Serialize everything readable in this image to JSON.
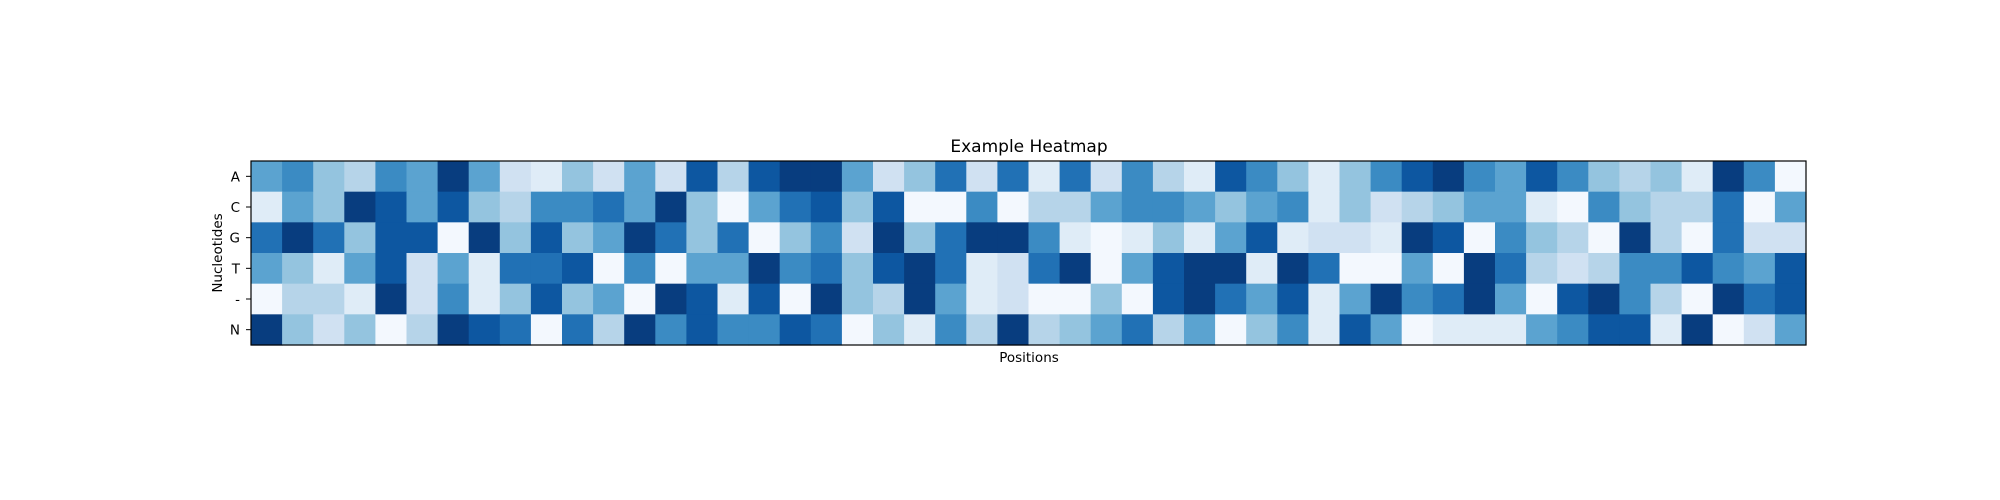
{
  "chart_data": {
    "type": "heatmap",
    "title": "Example Heatmap",
    "xlabel": "Positions",
    "ylabel": "Nucleotides",
    "rows": [
      "A",
      "C",
      "G",
      "T",
      "-",
      "N"
    ],
    "colormap": "Blues",
    "color_low": "#f7fbff",
    "color_high": "#08306b",
    "value_range": [
      0,
      1
    ],
    "x_ticks_visible": false,
    "values": [
      [
        0.55,
        0.65,
        0.4,
        0.3,
        0.65,
        0.55,
        0.95,
        0.55,
        0.2,
        0.12,
        0.4,
        0.2,
        0.55,
        0.2,
        0.85,
        0.3,
        0.85,
        0.95,
        0.95,
        0.55,
        0.2,
        0.4,
        0.75,
        0.2,
        0.75,
        0.12,
        0.75,
        0.2,
        0.65,
        0.3,
        0.12,
        0.85,
        0.65,
        0.4,
        0.12,
        0.4,
        0.65,
        0.85,
        0.95,
        0.65,
        0.55,
        0.85,
        0.65,
        0.4,
        0.3,
        0.4,
        0.12,
        0.95,
        0.65,
        0.02
      ],
      [
        0.12,
        0.55,
        0.4,
        0.95,
        0.85,
        0.55,
        0.85,
        0.4,
        0.3,
        0.65,
        0.65,
        0.75,
        0.55,
        0.95,
        0.4,
        0.02,
        0.55,
        0.75,
        0.85,
        0.4,
        0.85,
        0.02,
        0.02,
        0.65,
        0.02,
        0.3,
        0.3,
        0.55,
        0.65,
        0.65,
        0.55,
        0.4,
        0.55,
        0.65,
        0.12,
        0.4,
        0.2,
        0.3,
        0.4,
        0.55,
        0.55,
        0.12,
        0.02,
        0.65,
        0.4,
        0.3,
        0.3,
        0.75,
        0.02,
        0.55
      ],
      [
        0.75,
        0.95,
        0.75,
        0.4,
        0.85,
        0.85,
        0.02,
        0.95,
        0.4,
        0.85,
        0.4,
        0.55,
        0.95,
        0.75,
        0.4,
        0.75,
        0.02,
        0.4,
        0.65,
        0.2,
        0.95,
        0.4,
        0.75,
        0.95,
        0.95,
        0.65,
        0.12,
        0.02,
        0.12,
        0.4,
        0.12,
        0.55,
        0.85,
        0.12,
        0.2,
        0.2,
        0.12,
        0.95,
        0.85,
        0.02,
        0.65,
        0.4,
        0.3,
        0.02,
        0.95,
        0.3,
        0.02,
        0.75,
        0.2,
        0.2
      ],
      [
        0.55,
        0.4,
        0.12,
        0.55,
        0.85,
        0.2,
        0.55,
        0.12,
        0.75,
        0.75,
        0.85,
        0.02,
        0.65,
        0.02,
        0.55,
        0.55,
        0.95,
        0.65,
        0.75,
        0.4,
        0.85,
        0.95,
        0.75,
        0.12,
        0.2,
        0.75,
        0.95,
        0.02,
        0.55,
        0.85,
        0.95,
        0.95,
        0.12,
        0.95,
        0.75,
        0.02,
        0.02,
        0.55,
        0.02,
        0.95,
        0.75,
        0.3,
        0.2,
        0.3,
        0.65,
        0.65,
        0.85,
        0.65,
        0.55,
        0.85
      ],
      [
        0.02,
        0.3,
        0.3,
        0.12,
        0.95,
        0.2,
        0.65,
        0.12,
        0.4,
        0.85,
        0.4,
        0.55,
        0.02,
        0.95,
        0.85,
        0.12,
        0.85,
        0.02,
        0.95,
        0.4,
        0.3,
        0.95,
        0.55,
        0.12,
        0.2,
        0.02,
        0.02,
        0.4,
        0.02,
        0.85,
        0.95,
        0.75,
        0.55,
        0.85,
        0.12,
        0.55,
        0.95,
        0.65,
        0.75,
        0.95,
        0.55,
        0.02,
        0.85,
        0.95,
        0.65,
        0.3,
        0.02,
        0.95,
        0.75,
        0.85
      ],
      [
        0.95,
        0.4,
        0.2,
        0.4,
        0.02,
        0.3,
        0.95,
        0.85,
        0.75,
        0.02,
        0.75,
        0.3,
        0.95,
        0.65,
        0.85,
        0.65,
        0.65,
        0.85,
        0.75,
        0.02,
        0.4,
        0.12,
        0.65,
        0.3,
        0.95,
        0.3,
        0.4,
        0.55,
        0.75,
        0.3,
        0.55,
        0.02,
        0.4,
        0.65,
        0.12,
        0.85,
        0.55,
        0.02,
        0.12,
        0.12,
        0.12,
        0.55,
        0.65,
        0.85,
        0.85,
        0.12,
        0.95,
        0.02,
        0.2,
        0.55
      ]
    ]
  }
}
